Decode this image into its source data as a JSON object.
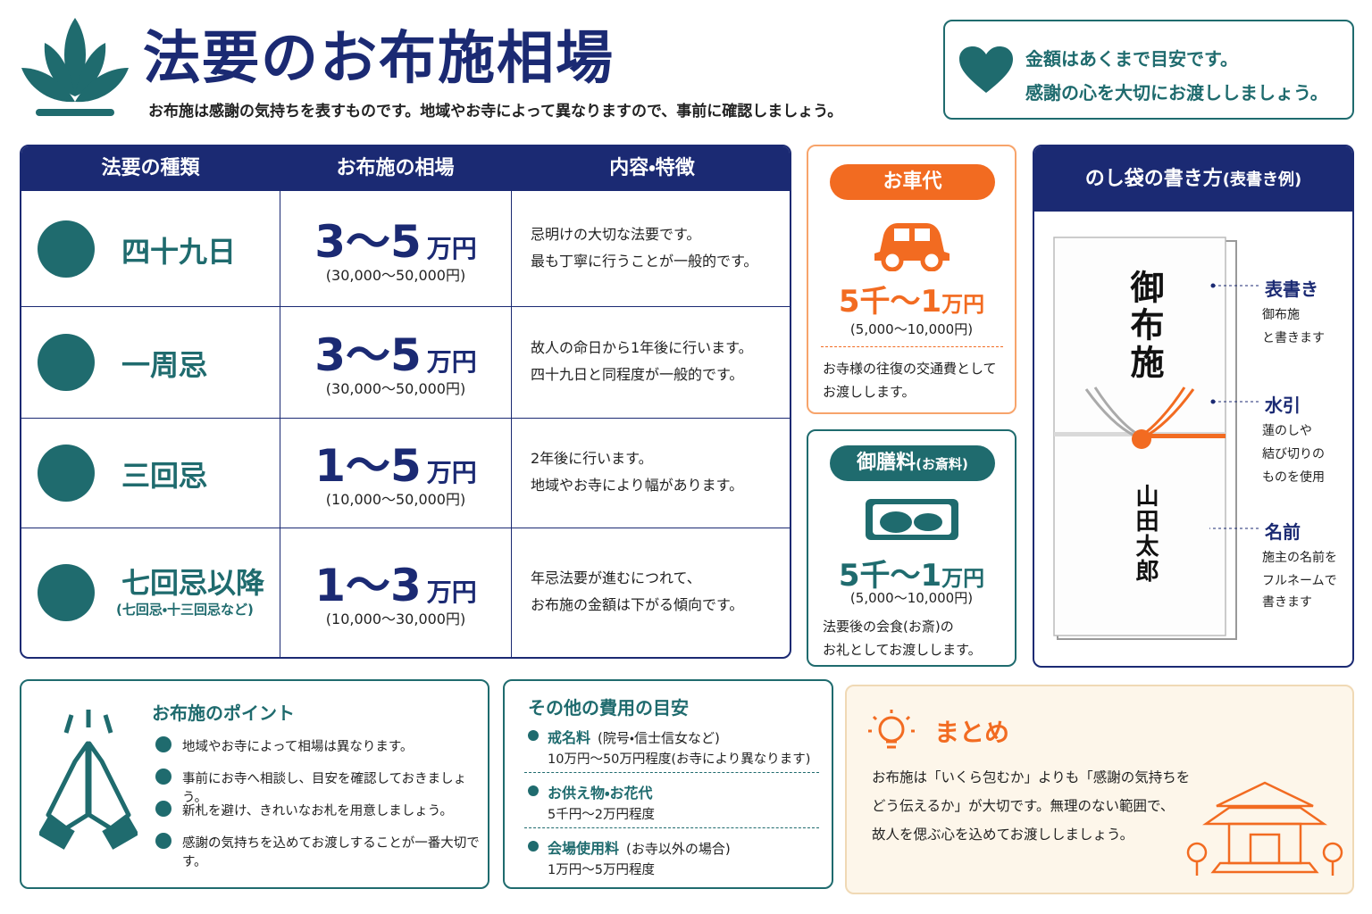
{
  "header": {
    "title": "法要のお布施相場",
    "subtitle": "お布施は感謝の気持ちを表すものです。地域やお寺によって異なりますので、事前に確認しましょう。"
  },
  "notice": {
    "lines": [
      "金額はあくまで目安です。",
      "感謝の心を大切にお渡ししましょう。"
    ]
  },
  "table": {
    "headers": [
      "法要の種類",
      "お布施の相場",
      "内容・特徴"
    ],
    "rows": [
      {
        "type": "四十九日",
        "amount": "3〜5",
        "unit": "万円",
        "range": "(30,000〜50,000円)",
        "description": [
          "忌明けの大切な法要です。",
          "最も丁寧に行うことが一般的です。"
        ]
      },
      {
        "type": "一周忌",
        "amount": "3〜5",
        "unit": "万円",
        "range": "(30,000〜50,000円)",
        "description": [
          "故人の命日から1年後に行います。",
          "四十九日と同程度が一般的です。"
        ]
      },
      {
        "type": "三回忌",
        "amount": "1〜5",
        "unit": "万円",
        "range": "(10,000〜50,000円)",
        "description": [
          "2年後に行います。",
          "地域やお寺により幅があります。"
        ]
      },
      {
        "type": "七回忌以降",
        "type_note": "(七回忌・十三回忌など)",
        "amount": "1〜3",
        "unit": "万円",
        "range": "(10,000〜30,000円)",
        "description": [
          "年忌法要が進むにつれて、",
          "お布施の金額は下がる傾向です。"
        ]
      }
    ]
  },
  "car_fee": {
    "label": "お車代",
    "amount": "5千〜1",
    "unit": "万円",
    "range": "(5,000〜10,000円)",
    "note": [
      "お寺様の往復の交通費として",
      "お渡しします。"
    ]
  },
  "meal_fee": {
    "label": "御膳料",
    "label_note": "(お斎料)",
    "amount": "5千〜1",
    "unit": "万円",
    "range": "(5,000〜10,000円)",
    "note": [
      "法要後の会食(お斎)の",
      "お礼としてお渡しします。"
    ]
  },
  "noshi": {
    "title": "のし袋の書き方",
    "title_note": "(表書き例)",
    "envelope_text": "御布施",
    "envelope_name": "山田太郎",
    "annotations": [
      {
        "label": "表書き",
        "lines": [
          "御布施",
          "と書きます"
        ]
      },
      {
        "label": "水引",
        "lines": [
          "蓮のしや",
          "結び切りの",
          "ものを使用"
        ]
      },
      {
        "label": "名前",
        "lines": [
          "施主の名前を",
          "フルネームで",
          "書きます"
        ]
      }
    ]
  },
  "points": {
    "title": "お布施のポイント",
    "items": [
      "地域やお寺によって相場は異なります。",
      "事前にお寺へ相談し、目安を確認しておきましょう。",
      "新札を避け、きれいなお札を用意しましょう。",
      "感謝の気持ちを込めてお渡しすることが一番大切です。"
    ]
  },
  "costs": {
    "title": "その他の費用の目安",
    "items": [
      {
        "name": "戒名料",
        "note": "(院号・信士信女など)",
        "detail": "10万円〜50万円程度(お寺により異なります)"
      },
      {
        "name": "お供え物・お花代",
        "detail": "5千円〜2万円程度"
      },
      {
        "name": "会場使用料",
        "note": "(お寺以外の場合)",
        "detail": "1万円〜5万円程度"
      }
    ]
  },
  "summary": {
    "title": "まとめ",
    "lines": [
      "お布施は「いくら包むか」よりも「感謝の気持ちを",
      "どう伝えるか」が大切です。無理のない範囲で、",
      "故人を偲ぶ心を込めてお渡ししましょう。"
    ]
  }
}
